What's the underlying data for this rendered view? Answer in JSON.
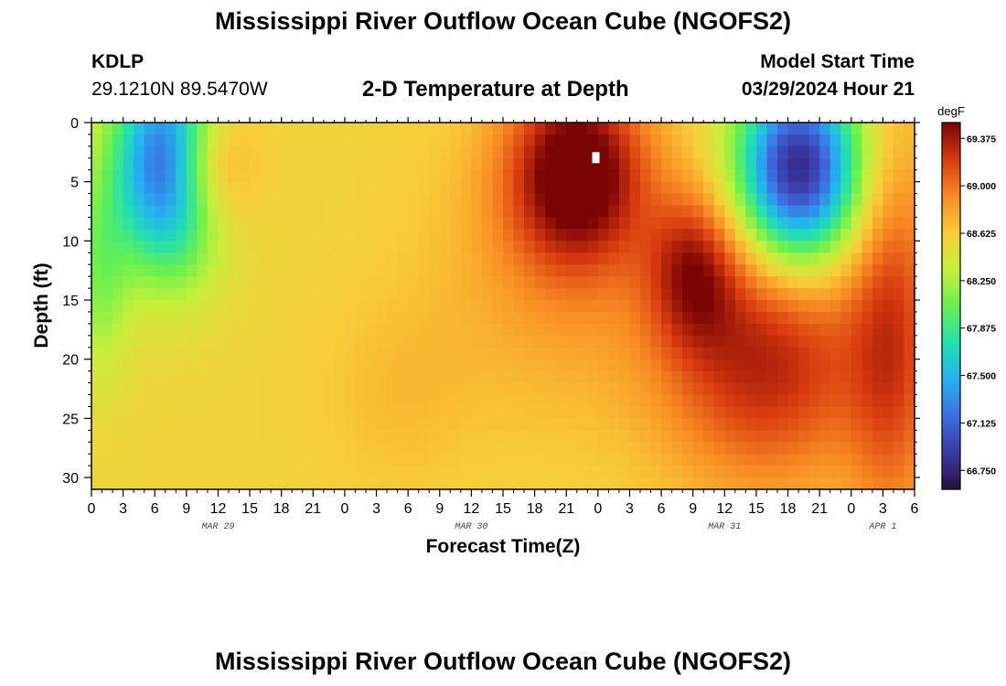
{
  "header": {
    "title": "Mississippi River Outflow Ocean Cube (NGOFS2)",
    "station": "KDLP",
    "coords": "29.1210N  89.5470W",
    "subtitle": "2-D Temperature at Depth",
    "model_start_label": "Model Start Time",
    "model_start_value": "03/29/2024 Hour 21"
  },
  "footer": {
    "title": "Mississippi River Outflow Ocean Cube (NGOFS2)"
  },
  "chart_data": {
    "type": "heatmap",
    "xlabel": "Forecast Time(Z)",
    "ylabel": "Depth (ft)",
    "x_start_hour": 0,
    "x_end_hour": 78,
    "x_tick_labels": [
      "0",
      "3",
      "6",
      "9",
      "12",
      "15",
      "18",
      "21",
      "0",
      "3",
      "6",
      "9",
      "12",
      "15",
      "18",
      "21",
      "0",
      "3",
      "6",
      "9",
      "12",
      "15",
      "18",
      "21",
      "0",
      "3",
      "6"
    ],
    "date_labels": [
      {
        "label": "MAR 29",
        "hour": 12
      },
      {
        "label": "MAR 30",
        "hour": 36
      },
      {
        "label": "MAR 31",
        "hour": 60
      },
      {
        "label": "APR 1",
        "hour": 75
      }
    ],
    "ylim": [
      0,
      31
    ],
    "y_ticks": [
      0,
      5,
      10,
      15,
      20,
      25,
      30
    ],
    "colorbar": {
      "unit": "degF",
      "min": 66.6,
      "max": 69.5,
      "tick_values": [
        66.75,
        67.125,
        67.5,
        67.875,
        68.25,
        68.625,
        69.0,
        69.375
      ],
      "tick_labels": [
        "66.750",
        "67.125",
        "67.500",
        "67.875",
        "68.250",
        "68.625",
        "69.000",
        "69.375"
      ],
      "colors": [
        "#2a0f3e",
        "#3a3aa8",
        "#3e6ee0",
        "#24b2f0",
        "#22e0b0",
        "#66f050",
        "#c6f03a",
        "#f8cd38",
        "#f88a22",
        "#d83a10",
        "#7a0404"
      ]
    },
    "field": {
      "baseline": 68.58,
      "features": [
        {
          "kind": "warm",
          "t": 10.5,
          "d": 3.5,
          "st": 3.0,
          "sd": 4.0,
          "amp": 0.85
        },
        {
          "kind": "cool",
          "t": 0.8,
          "d": 13,
          "st": 2.0,
          "sd": 6.0,
          "amp": -0.42
        },
        {
          "kind": "cold",
          "t": 7.5,
          "d": 3.5,
          "st": 3.6,
          "sd": 6.0,
          "amp": -1.75
        },
        {
          "kind": "warm",
          "t": 46,
          "d": 4.0,
          "st": 4.5,
          "sd": 5.5,
          "amp": 1.0
        },
        {
          "kind": "warm",
          "t": 44,
          "d": 12.0,
          "st": 8.0,
          "sd": 9.0,
          "amp": 0.25
        },
        {
          "kind": "warm",
          "t": 57,
          "d": 12.5,
          "st": 3.0,
          "sd": 4.5,
          "amp": 0.6
        },
        {
          "kind": "warm",
          "t": 64,
          "d": 20.0,
          "st": 7.0,
          "sd": 7.5,
          "amp": 0.75
        },
        {
          "kind": "cold",
          "t": 67,
          "d": 4.0,
          "st": 4.0,
          "sd": 5.5,
          "amp": -1.85
        },
        {
          "kind": "warm",
          "t": 76,
          "d": 18.0,
          "st": 3.0,
          "sd": 12.0,
          "amp": 0.55
        },
        {
          "kind": "warm",
          "t": 29,
          "d": 23.0,
          "st": 5.0,
          "sd": 6.0,
          "amp": 0.12
        }
      ]
    }
  }
}
